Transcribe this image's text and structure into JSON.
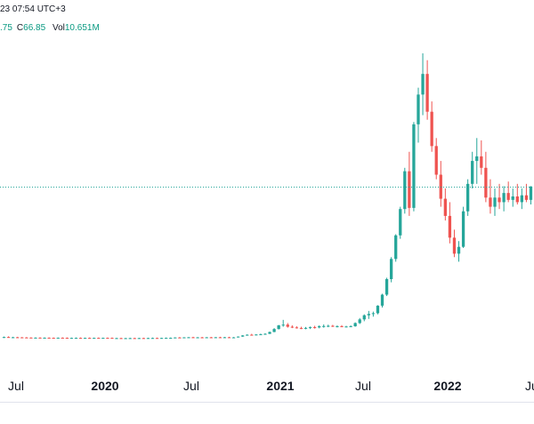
{
  "header": {
    "timestamp": "23 07:54 UTC+3",
    "partial_value": ".75",
    "close_label": "C",
    "close_value": "66.85",
    "volume_label": "Vol",
    "volume_value": "10.651M"
  },
  "colors": {
    "up": "#26a69a",
    "down": "#ef5350",
    "grid": "#e0e3eb",
    "price_line": "#26a69a",
    "axis_text": "#131722"
  },
  "chart_data": {
    "type": "candlestick",
    "interval": "weekly",
    "x_tick_labels": [
      "Jul",
      "2020",
      "Jul",
      "2021",
      "Jul",
      "2022",
      "Ju"
    ],
    "x_ticks_bold": [
      "2020",
      "2021",
      "2022"
    ],
    "current_price": 66.85,
    "price_line": "dotted horizontal at last price",
    "candles": [
      {
        "o": 0.9,
        "h": 1.3,
        "l": 0.7,
        "c": 1.1
      },
      {
        "o": 1.1,
        "h": 1.4,
        "l": 0.8,
        "c": 0.9
      },
      {
        "o": 0.9,
        "h": 1.2,
        "l": 0.7,
        "c": 1.0
      },
      {
        "o": 1.0,
        "h": 1.2,
        "l": 0.8,
        "c": 0.95
      },
      {
        "o": 0.95,
        "h": 1.1,
        "l": 0.7,
        "c": 0.9
      },
      {
        "o": 0.9,
        "h": 1.1,
        "l": 0.7,
        "c": 0.85
      },
      {
        "o": 0.85,
        "h": 1.0,
        "l": 0.6,
        "c": 0.8
      },
      {
        "o": 0.8,
        "h": 1.0,
        "l": 0.6,
        "c": 0.82
      },
      {
        "o": 0.82,
        "h": 1.0,
        "l": 0.6,
        "c": 0.78
      },
      {
        "o": 0.78,
        "h": 0.95,
        "l": 0.6,
        "c": 0.8
      },
      {
        "o": 0.8,
        "h": 0.95,
        "l": 0.6,
        "c": 0.76
      },
      {
        "o": 0.76,
        "h": 0.9,
        "l": 0.55,
        "c": 0.75
      },
      {
        "o": 0.75,
        "h": 0.9,
        "l": 0.55,
        "c": 0.8
      },
      {
        "o": 0.8,
        "h": 0.95,
        "l": 0.6,
        "c": 0.78
      },
      {
        "o": 0.78,
        "h": 0.9,
        "l": 0.55,
        "c": 0.7
      },
      {
        "o": 0.7,
        "h": 0.85,
        "l": 0.5,
        "c": 0.72
      },
      {
        "o": 0.72,
        "h": 0.9,
        "l": 0.55,
        "c": 0.74
      },
      {
        "o": 0.74,
        "h": 0.9,
        "l": 0.55,
        "c": 0.7
      },
      {
        "o": 0.7,
        "h": 0.85,
        "l": 0.5,
        "c": 0.72
      },
      {
        "o": 0.72,
        "h": 0.9,
        "l": 0.55,
        "c": 0.7
      },
      {
        "o": 0.7,
        "h": 0.85,
        "l": 0.5,
        "c": 0.73
      },
      {
        "o": 0.73,
        "h": 0.9,
        "l": 0.55,
        "c": 0.71
      },
      {
        "o": 0.71,
        "h": 0.85,
        "l": 0.5,
        "c": 0.74
      },
      {
        "o": 0.74,
        "h": 0.9,
        "l": 0.55,
        "c": 0.72
      },
      {
        "o": 0.72,
        "h": 0.9,
        "l": 0.5,
        "c": 0.6
      },
      {
        "o": 0.6,
        "h": 0.8,
        "l": 0.4,
        "c": 0.62
      },
      {
        "o": 0.62,
        "h": 0.8,
        "l": 0.45,
        "c": 0.58
      },
      {
        "o": 0.58,
        "h": 0.75,
        "l": 0.4,
        "c": 0.6
      },
      {
        "o": 0.6,
        "h": 0.8,
        "l": 0.45,
        "c": 0.62
      },
      {
        "o": 0.62,
        "h": 0.8,
        "l": 0.45,
        "c": 0.6
      },
      {
        "o": 0.6,
        "h": 0.75,
        "l": 0.45,
        "c": 0.64
      },
      {
        "o": 0.64,
        "h": 0.8,
        "l": 0.5,
        "c": 0.62
      },
      {
        "o": 0.62,
        "h": 0.8,
        "l": 0.45,
        "c": 0.66
      },
      {
        "o": 0.66,
        "h": 0.85,
        "l": 0.5,
        "c": 0.68
      },
      {
        "o": 0.68,
        "h": 0.85,
        "l": 0.5,
        "c": 0.65
      },
      {
        "o": 0.65,
        "h": 0.8,
        "l": 0.5,
        "c": 0.7
      },
      {
        "o": 0.7,
        "h": 0.9,
        "l": 0.55,
        "c": 0.72
      },
      {
        "o": 0.72,
        "h": 0.9,
        "l": 0.55,
        "c": 0.75
      },
      {
        "o": 0.75,
        "h": 1.0,
        "l": 0.6,
        "c": 0.9
      },
      {
        "o": 0.9,
        "h": 1.1,
        "l": 0.7,
        "c": 0.85
      },
      {
        "o": 0.85,
        "h": 1.05,
        "l": 0.65,
        "c": 0.95
      },
      {
        "o": 0.95,
        "h": 1.1,
        "l": 0.7,
        "c": 1.0
      },
      {
        "o": 1.0,
        "h": 1.2,
        "l": 0.8,
        "c": 0.92
      },
      {
        "o": 0.92,
        "h": 1.1,
        "l": 0.75,
        "c": 0.96
      },
      {
        "o": 0.96,
        "h": 1.15,
        "l": 0.75,
        "c": 0.94
      },
      {
        "o": 0.94,
        "h": 1.1,
        "l": 0.75,
        "c": 0.98
      },
      {
        "o": 0.98,
        "h": 1.15,
        "l": 0.8,
        "c": 0.95
      },
      {
        "o": 0.95,
        "h": 1.1,
        "l": 0.75,
        "c": 1.0
      },
      {
        "o": 1.0,
        "h": 1.2,
        "l": 0.8,
        "c": 0.97
      },
      {
        "o": 0.97,
        "h": 1.15,
        "l": 0.8,
        "c": 1.0
      },
      {
        "o": 1.0,
        "h": 1.2,
        "l": 0.8,
        "c": 0.9
      },
      {
        "o": 0.9,
        "h": 1.1,
        "l": 0.7,
        "c": 0.95
      },
      {
        "o": 0.95,
        "h": 1.4,
        "l": 0.9,
        "c": 1.3
      },
      {
        "o": 1.3,
        "h": 1.9,
        "l": 1.2,
        "c": 1.8
      },
      {
        "o": 1.8,
        "h": 2.3,
        "l": 1.7,
        "c": 2.1
      },
      {
        "o": 2.1,
        "h": 2.5,
        "l": 1.8,
        "c": 2.0
      },
      {
        "o": 2.0,
        "h": 2.4,
        "l": 1.8,
        "c": 2.2
      },
      {
        "o": 2.2,
        "h": 2.6,
        "l": 2.0,
        "c": 2.3
      },
      {
        "o": 2.3,
        "h": 2.8,
        "l": 2.1,
        "c": 2.5
      },
      {
        "o": 2.5,
        "h": 3.5,
        "l": 2.4,
        "c": 3.3
      },
      {
        "o": 3.3,
        "h": 5.0,
        "l": 3.2,
        "c": 4.6
      },
      {
        "o": 4.6,
        "h": 6.4,
        "l": 4.4,
        "c": 6.2
      },
      {
        "o": 6.2,
        "h": 8.6,
        "l": 5.6,
        "c": 6.5
      },
      {
        "o": 6.5,
        "h": 7.2,
        "l": 5.2,
        "c": 5.6
      },
      {
        "o": 5.6,
        "h": 6.2,
        "l": 5.0,
        "c": 5.3
      },
      {
        "o": 5.3,
        "h": 5.8,
        "l": 4.8,
        "c": 5.0
      },
      {
        "o": 5.0,
        "h": 5.6,
        "l": 4.6,
        "c": 4.8
      },
      {
        "o": 4.8,
        "h": 5.5,
        "l": 4.5,
        "c": 5.1
      },
      {
        "o": 5.1,
        "h": 5.7,
        "l": 4.6,
        "c": 5.4
      },
      {
        "o": 5.4,
        "h": 6.0,
        "l": 4.8,
        "c": 5.3
      },
      {
        "o": 5.3,
        "h": 6.2,
        "l": 4.9,
        "c": 5.8
      },
      {
        "o": 5.8,
        "h": 6.6,
        "l": 5.2,
        "c": 5.9
      },
      {
        "o": 5.9,
        "h": 6.5,
        "l": 5.4,
        "c": 6.0
      },
      {
        "o": 6.0,
        "h": 6.4,
        "l": 5.5,
        "c": 5.7
      },
      {
        "o": 5.7,
        "h": 6.2,
        "l": 5.3,
        "c": 5.8
      },
      {
        "o": 5.8,
        "h": 6.3,
        "l": 5.4,
        "c": 5.6
      },
      {
        "o": 5.6,
        "h": 6.0,
        "l": 5.3,
        "c": 5.7
      },
      {
        "o": 5.7,
        "h": 6.2,
        "l": 5.4,
        "c": 5.8
      },
      {
        "o": 5.8,
        "h": 7.5,
        "l": 5.6,
        "c": 7.2
      },
      {
        "o": 7.2,
        "h": 9.4,
        "l": 6.8,
        "c": 8.8
      },
      {
        "o": 8.8,
        "h": 11.0,
        "l": 8.0,
        "c": 10.6
      },
      {
        "o": 10.6,
        "h": 12.5,
        "l": 9.0,
        "c": 11.2
      },
      {
        "o": 11.2,
        "h": 12.2,
        "l": 10.0,
        "c": 11.5
      },
      {
        "o": 11.5,
        "h": 15.0,
        "l": 11.0,
        "c": 14.8
      },
      {
        "o": 14.8,
        "h": 20.0,
        "l": 14.0,
        "c": 19.6
      },
      {
        "o": 19.6,
        "h": 27.0,
        "l": 19.0,
        "c": 26.4
      },
      {
        "o": 26.4,
        "h": 36.0,
        "l": 25.0,
        "c": 35.2
      },
      {
        "o": 35.2,
        "h": 46.0,
        "l": 34.0,
        "c": 45.5
      },
      {
        "o": 45.5,
        "h": 58.0,
        "l": 44.0,
        "c": 57.0
      },
      {
        "o": 57.0,
        "h": 75.0,
        "l": 55.0,
        "c": 73.5
      },
      {
        "o": 73.5,
        "h": 82.0,
        "l": 54.0,
        "c": 57.5
      },
      {
        "o": 57.5,
        "h": 95.0,
        "l": 56.0,
        "c": 94.0
      },
      {
        "o": 94.0,
        "h": 110.0,
        "l": 86.0,
        "c": 107.0
      },
      {
        "o": 107.0,
        "h": 125.0,
        "l": 98.0,
        "c": 116.0
      },
      {
        "o": 116.0,
        "h": 122.0,
        "l": 96.0,
        "c": 99.5
      },
      {
        "o": 99.5,
        "h": 104.0,
        "l": 82.0,
        "c": 84.5
      },
      {
        "o": 84.5,
        "h": 88.0,
        "l": 70.0,
        "c": 72.0
      },
      {
        "o": 72.0,
        "h": 78.0,
        "l": 58.0,
        "c": 61.5
      },
      {
        "o": 61.5,
        "h": 66.0,
        "l": 52.0,
        "c": 54.0
      },
      {
        "o": 54.0,
        "h": 60.0,
        "l": 42.0,
        "c": 44.5
      },
      {
        "o": 44.5,
        "h": 48.0,
        "l": 36.0,
        "c": 37.5
      },
      {
        "o": 37.5,
        "h": 43.0,
        "l": 34.0,
        "c": 40.5
      },
      {
        "o": 40.5,
        "h": 58.0,
        "l": 40.0,
        "c": 56.0
      },
      {
        "o": 56.0,
        "h": 70.0,
        "l": 54.0,
        "c": 68.0
      },
      {
        "o": 68.0,
        "h": 82.0,
        "l": 66.0,
        "c": 78.0
      },
      {
        "o": 78.0,
        "h": 88.0,
        "l": 68.0,
        "c": 80.0
      },
      {
        "o": 80.0,
        "h": 87.0,
        "l": 72.0,
        "c": 75.0
      },
      {
        "o": 75.0,
        "h": 82.0,
        "l": 60.0,
        "c": 62.0
      },
      {
        "o": 62.0,
        "h": 70.0,
        "l": 55.0,
        "c": 58.0
      },
      {
        "o": 58.0,
        "h": 66.0,
        "l": 54.0,
        "c": 62.0
      },
      {
        "o": 62.0,
        "h": 68.0,
        "l": 57.0,
        "c": 60.0
      },
      {
        "o": 60.0,
        "h": 67.0,
        "l": 56.0,
        "c": 64.0
      },
      {
        "o": 64.0,
        "h": 69.0,
        "l": 60.0,
        "c": 61.0
      },
      {
        "o": 61.0,
        "h": 66.0,
        "l": 58.0,
        "c": 62.5
      },
      {
        "o": 62.5,
        "h": 68.0,
        "l": 59.0,
        "c": 60.0
      },
      {
        "o": 60.0,
        "h": 66.0,
        "l": 57.0,
        "c": 63.0
      },
      {
        "o": 63.0,
        "h": 68.0,
        "l": 60.0,
        "c": 61.0
      },
      {
        "o": 61.0,
        "h": 67.0,
        "l": 59.0,
        "c": 66.85
      }
    ]
  }
}
